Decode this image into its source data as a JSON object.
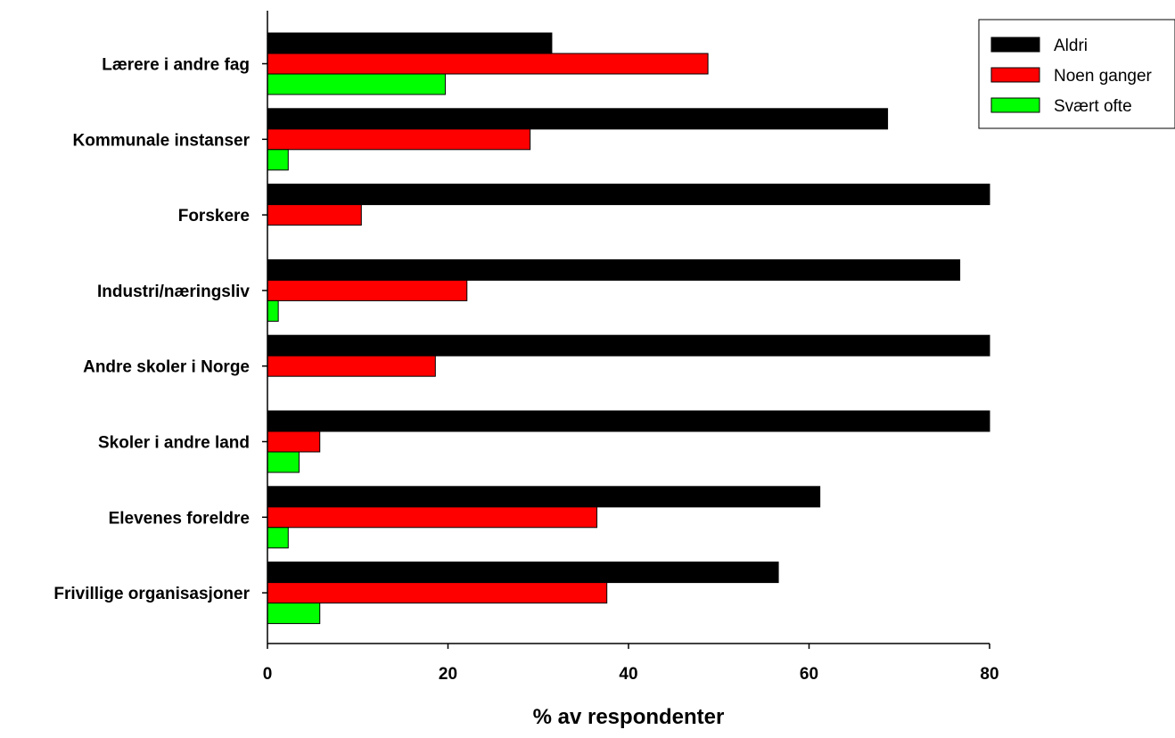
{
  "chart_data": {
    "type": "bar",
    "orientation": "horizontal",
    "title": "",
    "xlabel": "% av respondenter",
    "ylabel": "",
    "xlim": [
      0,
      80
    ],
    "xticks": [
      0,
      20,
      40,
      60,
      80
    ],
    "grid": false,
    "legend_position": "top-right",
    "categories": [
      "Lærere i andre fag",
      "Kommunale instanser",
      "Forskere",
      "Industri/næringsliv",
      "Andre skoler i Norge",
      "Skoler i andre land",
      "Elevenes foreldre",
      "Frivillige organisasjoner"
    ],
    "series": [
      {
        "name": "Aldri",
        "color": "#000000",
        "values": [
          31.5,
          68.7,
          80,
          76.7,
          80,
          80,
          61.2,
          56.6
        ]
      },
      {
        "name": "Noen ganger",
        "color": "#ff0000",
        "values": [
          48.8,
          29.1,
          10.4,
          22.1,
          18.6,
          5.8,
          36.5,
          37.6
        ]
      },
      {
        "name": "Svært ofte",
        "color": "#00ff00",
        "values": [
          19.7,
          2.3,
          0,
          1.2,
          0,
          3.5,
          2.3,
          5.8
        ]
      }
    ]
  }
}
